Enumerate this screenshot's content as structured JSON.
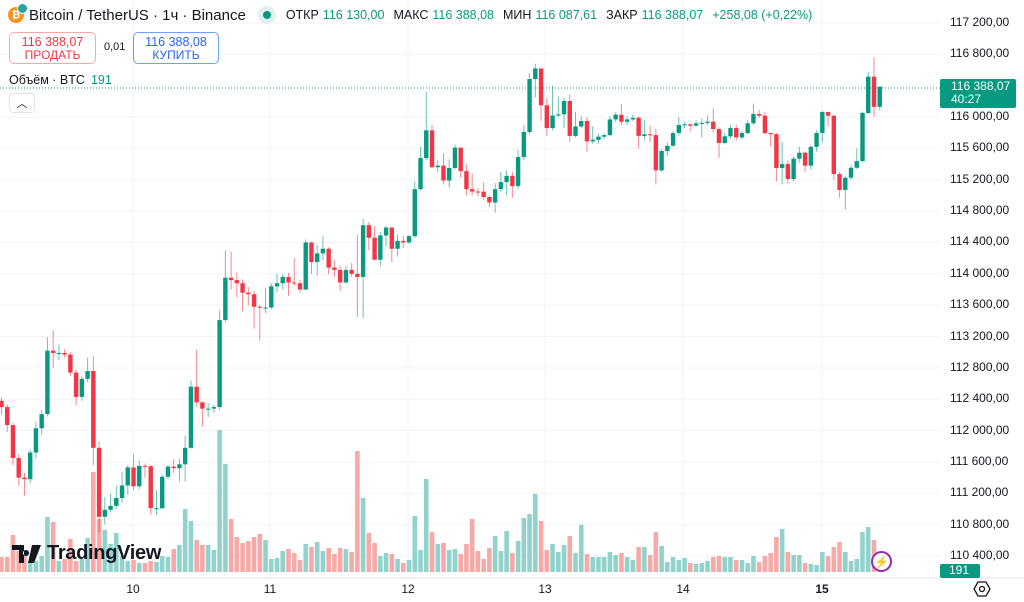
{
  "header": {
    "symbol": "Bitcoin / TetherUS · 1ч · Binance",
    "open_label": "ОТКР",
    "open": "116 130,00",
    "high_label": "МАКС",
    "high": "116 388,08",
    "low_label": "МИН",
    "low": "116 087,61",
    "close_label": "ЗАКР",
    "close": "116 388,07",
    "change": "+258,08 (+0,22%)"
  },
  "trade": {
    "sell_price": "116 388,07",
    "sell_label": "ПРОДАТЬ",
    "spread": "0,01",
    "buy_price": "116 388,08",
    "buy_label": "КУПИТЬ"
  },
  "volume_legend": {
    "label": "Объём · BTC",
    "value": "191"
  },
  "price_axis": {
    "labels": [
      "117 200,00",
      "116 800,00",
      "116 000,00",
      "115 600,00",
      "115 200,00",
      "114 800,00",
      "114 400,00",
      "114 000,00",
      "113 600,00",
      "113 200,00",
      "112 800,00",
      "112 400,00",
      "112 000,00",
      "111 600,00",
      "111 200,00",
      "110 800,00",
      "110 400,00"
    ],
    "current_price": "116 388,07",
    "countdown": "40:27",
    "current_volume": "191"
  },
  "time_axis": {
    "labels": [
      "10",
      "11",
      "12",
      "13",
      "14",
      "15"
    ]
  },
  "branding": {
    "logo": "TradingView"
  },
  "colors": {
    "up": "#089981",
    "down": "#f23645",
    "vol_up": "#92d2cc",
    "vol_down": "#f7a9a7"
  },
  "icons": [
    "bitcoin-icon",
    "market-open-icon",
    "chevron-up-icon",
    "lightning-icon",
    "settings-icon"
  ],
  "chart_data": {
    "type": "candlestick",
    "interval": "1h",
    "ylim": [
      110200,
      117400
    ],
    "x_tick_labels": [
      "10",
      "11",
      "12",
      "13",
      "14",
      "15"
    ],
    "ohlc": [
      [
        112380,
        112420,
        112200,
        112300
      ],
      [
        112300,
        112330,
        111980,
        112070
      ],
      [
        112070,
        112100,
        111560,
        111650
      ],
      [
        111650,
        111700,
        111300,
        111400
      ],
      [
        111400,
        111460,
        111170,
        111380
      ],
      [
        111380,
        111760,
        111330,
        111720
      ],
      [
        111720,
        112110,
        111650,
        112030
      ],
      [
        112030,
        112260,
        111950,
        112210
      ],
      [
        112210,
        113190,
        112180,
        113020
      ],
      [
        113020,
        113280,
        112800,
        112990
      ],
      [
        112990,
        113100,
        112900,
        112990
      ],
      [
        112990,
        113040,
        112930,
        112970
      ],
      [
        112970,
        113000,
        112700,
        112740
      ],
      [
        112740,
        112780,
        112320,
        112430
      ],
      [
        112430,
        112700,
        112380,
        112660
      ],
      [
        112660,
        112930,
        112620,
        112760
      ],
      [
        112760,
        112950,
        111560,
        111780
      ],
      [
        111780,
        111860,
        110700,
        110900
      ],
      [
        110900,
        111150,
        110800,
        110990
      ],
      [
        110990,
        111190,
        110960,
        111040
      ],
      [
        111040,
        111300,
        111000,
        111140
      ],
      [
        111140,
        111470,
        111080,
        111300
      ],
      [
        111300,
        111560,
        111180,
        111530
      ],
      [
        111530,
        111700,
        111240,
        111290
      ],
      [
        111290,
        111620,
        111250,
        111550
      ],
      [
        111550,
        111580,
        111400,
        111545
      ],
      [
        111545,
        111560,
        110930,
        111010
      ],
      [
        111010,
        111240,
        110920,
        111010
      ],
      [
        111010,
        111440,
        111000,
        111410
      ],
      [
        111410,
        111560,
        111380,
        111540
      ],
      [
        111540,
        111640,
        111460,
        111520
      ],
      [
        111520,
        111640,
        111350,
        111570
      ],
      [
        111570,
        111940,
        111350,
        111780
      ],
      [
        111780,
        112640,
        111770,
        112560
      ],
      [
        112560,
        113030,
        112300,
        112360
      ],
      [
        112360,
        112370,
        112050,
        112280
      ],
      [
        112280,
        112350,
        112170,
        112280
      ],
      [
        112280,
        112330,
        112230,
        112300
      ],
      [
        112300,
        113530,
        112260,
        113410
      ],
      [
        113410,
        114300,
        113380,
        113950
      ],
      [
        113950,
        114280,
        113800,
        113920
      ],
      [
        113920,
        114020,
        113700,
        113880
      ],
      [
        113880,
        113930,
        113520,
        113760
      ],
      [
        113760,
        113830,
        113600,
        113740
      ],
      [
        113740,
        113780,
        113300,
        113580
      ],
      [
        113580,
        113600,
        113150,
        113570
      ],
      [
        113570,
        113820,
        113500,
        113570
      ],
      [
        113570,
        113880,
        113550,
        113840
      ],
      [
        113840,
        114000,
        113760,
        113880
      ],
      [
        113880,
        114000,
        113800,
        113960
      ],
      [
        113960,
        114010,
        113720,
        113890
      ],
      [
        113890,
        114200,
        113850,
        113880
      ],
      [
        113880,
        113920,
        113760,
        113800
      ],
      [
        113800,
        114440,
        113790,
        114400
      ],
      [
        114400,
        114410,
        114000,
        114150
      ],
      [
        114150,
        114370,
        113980,
        114260
      ],
      [
        114260,
        114480,
        114170,
        114320
      ],
      [
        114320,
        114340,
        114000,
        114080
      ],
      [
        114080,
        114180,
        113960,
        114050
      ],
      [
        114050,
        114100,
        113780,
        113890
      ],
      [
        113890,
        114100,
        113870,
        114050
      ],
      [
        114050,
        114140,
        113960,
        114000
      ],
      [
        114000,
        114500,
        113450,
        113960
      ],
      [
        113960,
        114700,
        113440,
        114620
      ],
      [
        114620,
        114660,
        114300,
        114460
      ],
      [
        114460,
        114610,
        114180,
        114180
      ],
      [
        114180,
        114530,
        114100,
        114490
      ],
      [
        114490,
        114610,
        114350,
        114590
      ],
      [
        114590,
        114600,
        114150,
        114320
      ],
      [
        114320,
        114500,
        114220,
        114420
      ],
      [
        114420,
        114480,
        114330,
        114400
      ],
      [
        114400,
        114500,
        114380,
        114480
      ],
      [
        114480,
        115180,
        114460,
        115080
      ],
      [
        115080,
        115620,
        115060,
        115477
      ],
      [
        115477,
        116320,
        115450,
        115830
      ],
      [
        115830,
        115900,
        115350,
        115360
      ],
      [
        115360,
        115450,
        115300,
        115380
      ],
      [
        115380,
        115540,
        115140,
        115190
      ],
      [
        115190,
        115460,
        115100,
        115350
      ],
      [
        115350,
        115650,
        115330,
        115610
      ],
      [
        115610,
        115610,
        115230,
        115310
      ],
      [
        115310,
        115400,
        115000,
        115080
      ],
      [
        115080,
        115280,
        115000,
        115050
      ],
      [
        115050,
        115090,
        114990,
        115048
      ],
      [
        115048,
        115170,
        114940,
        114980
      ],
      [
        114980,
        115000,
        114850,
        114910
      ],
      [
        114910,
        115160,
        114780,
        115080
      ],
      [
        115080,
        115300,
        115040,
        115170
      ],
      [
        115170,
        115320,
        115000,
        115250
      ],
      [
        115250,
        115300,
        114970,
        115120
      ],
      [
        115120,
        115580,
        115080,
        115490
      ],
      [
        115490,
        115900,
        115450,
        115810
      ],
      [
        115810,
        116560,
        115780,
        116485
      ],
      [
        116485,
        116680,
        116250,
        116620
      ],
      [
        116620,
        116620,
        115950,
        116150
      ],
      [
        116150,
        116240,
        115760,
        115860
      ],
      [
        115860,
        116400,
        115830,
        116020
      ],
      [
        116020,
        116260,
        116000,
        116035
      ],
      [
        116035,
        116250,
        115860,
        116205
      ],
      [
        116205,
        116290,
        115680,
        115760
      ],
      [
        115760,
        116070,
        115740,
        115880
      ],
      [
        115880,
        116010,
        115860,
        115950
      ],
      [
        115950,
        116000,
        115560,
        115690
      ],
      [
        115690,
        115880,
        115660,
        115710
      ],
      [
        115710,
        115790,
        115660,
        115750
      ],
      [
        115750,
        115790,
        115720,
        115770
      ],
      [
        115770,
        116010,
        115760,
        115970
      ],
      [
        115970,
        116060,
        115940,
        116030
      ],
      [
        116030,
        116160,
        115900,
        115940
      ],
      [
        115940,
        116010,
        115900,
        115970
      ],
      [
        115970,
        116030,
        115950,
        115990
      ],
      [
        115990,
        116010,
        115600,
        115760
      ],
      [
        115760,
        115960,
        115700,
        115780
      ],
      [
        115780,
        115890,
        115680,
        115770
      ],
      [
        115770,
        115850,
        115140,
        115320
      ],
      [
        115320,
        115590,
        115300,
        115567
      ],
      [
        115567,
        115680,
        115500,
        115634
      ],
      [
        115634,
        115820,
        115620,
        115796
      ],
      [
        115796,
        116000,
        115760,
        115898
      ],
      [
        115898,
        115940,
        115860,
        115907
      ],
      [
        115907,
        115920,
        115820,
        115890
      ],
      [
        115890,
        115960,
        115880,
        115920
      ],
      [
        115920,
        115980,
        115740,
        115925
      ],
      [
        115925,
        116020,
        115900,
        115941
      ],
      [
        115941,
        116110,
        115800,
        115847
      ],
      [
        115847,
        115870,
        115480,
        115669
      ],
      [
        115669,
        115800,
        115650,
        115754
      ],
      [
        115754,
        115900,
        115720,
        115860
      ],
      [
        115860,
        115900,
        115700,
        115740
      ],
      [
        115740,
        115820,
        115720,
        115796
      ],
      [
        115796,
        115960,
        115780,
        115920
      ],
      [
        115920,
        116170,
        115900,
        116039
      ],
      [
        116039,
        116090,
        115990,
        116018
      ],
      [
        116018,
        116060,
        115780,
        115796
      ],
      [
        115796,
        115800,
        115620,
        115782
      ],
      [
        115782,
        115800,
        115180,
        115350
      ],
      [
        115350,
        115680,
        115140,
        115400
      ],
      [
        115400,
        115450,
        115150,
        115210
      ],
      [
        115210,
        115500,
        115180,
        115470
      ],
      [
        115470,
        115620,
        115420,
        115545
      ],
      [
        115545,
        115560,
        115300,
        115380
      ],
      [
        115380,
        115640,
        115330,
        115620
      ],
      [
        115620,
        115830,
        115560,
        115796
      ],
      [
        115796,
        116080,
        115680,
        116064
      ],
      [
        116064,
        116070,
        115880,
        116017
      ],
      [
        116017,
        116030,
        115200,
        115273
      ],
      [
        115273,
        115300,
        114970,
        115070
      ],
      [
        115070,
        115240,
        114820,
        115226
      ],
      [
        115226,
        115390,
        115200,
        115353
      ],
      [
        115353,
        115600,
        115340,
        115438
      ],
      [
        115438,
        116070,
        115420,
        116052
      ],
      [
        116052,
        116580,
        116040,
        116515
      ],
      [
        116515,
        116760,
        116000,
        116130
      ],
      [
        116130,
        116388.08,
        116087.61,
        116388.07
      ]
    ],
    "volume": [
      285,
      285,
      703,
      399,
      304,
      209,
      209,
      304,
      1045,
      950,
      209,
      247,
      627,
      209,
      247,
      646,
      1900,
      1007,
      798,
      532,
      741,
      304,
      209,
      228,
      171,
      171,
      209,
      190,
      304,
      285,
      437,
      513,
      1197,
      969,
      608,
      513,
      513,
      418,
      2698,
      2052,
      1007,
      665,
      551,
      589,
      665,
      722,
      608,
      247,
      266,
      399,
      437,
      361,
      228,
      532,
      475,
      570,
      399,
      456,
      342,
      456,
      437,
      380,
      2299,
      1406,
      741,
      551,
      304,
      361,
      342,
      247,
      171,
      228,
      1064,
      418,
      1767,
      760,
      532,
      551,
      418,
      437,
      342,
      532,
      1007,
      399,
      247,
      456,
      684,
      399,
      779,
      361,
      589,
      1026,
      1102,
      1482,
      969,
      418,
      532,
      380,
      513,
      684,
      361,
      893,
      342,
      285,
      285,
      285,
      380,
      323,
      361,
      285,
      228,
      475,
      475,
      323,
      760,
      494,
      190,
      285,
      228,
      266,
      171,
      152,
      171,
      209,
      285,
      304,
      285,
      285,
      228,
      228,
      171,
      304,
      190,
      304,
      361,
      665,
      817,
      380,
      323,
      323,
      171,
      152,
      133,
      380,
      304,
      475,
      570,
      380,
      209,
      247,
      760,
      855,
      608,
      191
    ]
  }
}
